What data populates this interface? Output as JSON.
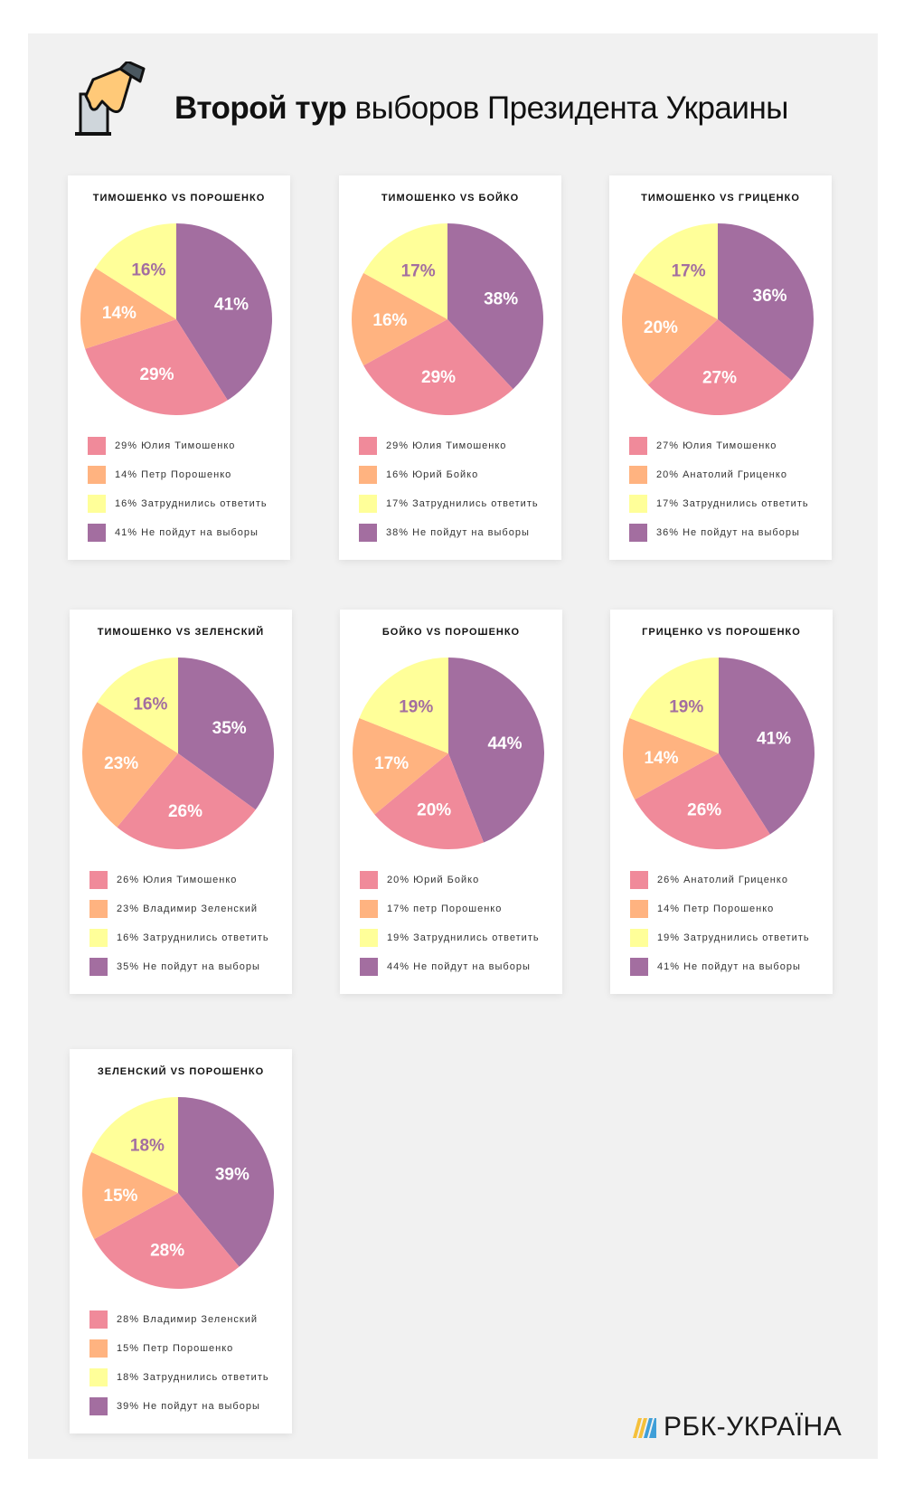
{
  "header": {
    "title_bold": "Второй тур",
    "title_rest": "выборов Президента Украины",
    "icon": "ballot-box-hand-icon"
  },
  "logo": {
    "text": "РБК-УКРАЇНА"
  },
  "colors": {
    "candidate1": "#f08a9a",
    "candidate2": "#ffb380",
    "undecided": "#ffff99",
    "not_voting": "#a36ea0",
    "background": "#f1f1f1"
  },
  "chart_data": [
    {
      "type": "pie",
      "title": "ТИМОШЕНКО VS ПОРОШЕНКО",
      "slices": [
        {
          "label": "29% Юлия Тимошенко",
          "value": 29
        },
        {
          "label": "14% Петр Порошенко",
          "value": 14
        },
        {
          "label": "16% Затруднились ответить",
          "value": 16
        },
        {
          "label": "41% Не пойдут на выборы",
          "value": 41
        }
      ]
    },
    {
      "type": "pie",
      "title": "ТИМОШЕНКО VS БОЙКО",
      "slices": [
        {
          "label": "29% Юлия Тимошенко",
          "value": 29
        },
        {
          "label": "16% Юрий Бойко",
          "value": 16
        },
        {
          "label": "17% Затруднились ответить",
          "value": 17
        },
        {
          "label": "38% Не пойдут на выборы",
          "value": 38
        }
      ]
    },
    {
      "type": "pie",
      "title": "ТИМОШЕНКО VS ГРИЦЕНКО",
      "slices": [
        {
          "label": "27% Юлия Тимошенко",
          "value": 27
        },
        {
          "label": "20% Анатолий Гриценко",
          "value": 20
        },
        {
          "label": "17% Затруднились ответить",
          "value": 17
        },
        {
          "label": "36% Не пойдут на выборы",
          "value": 36
        }
      ]
    },
    {
      "type": "pie",
      "title": "ТИМОШЕНКО VS ЗЕЛЕНСКИЙ",
      "slices": [
        {
          "label": "26% Юлия Тимошенко",
          "value": 26
        },
        {
          "label": "23% Владимир Зеленский",
          "value": 23
        },
        {
          "label": "16% Затруднились ответить",
          "value": 16
        },
        {
          "label": "35% Не пойдут на выборы",
          "value": 35
        }
      ]
    },
    {
      "type": "pie",
      "title": "БОЙКО VS ПОРОШЕНКО",
      "slices": [
        {
          "label": "20% Юрий Бойко",
          "value": 20
        },
        {
          "label": "17% петр Порошенко",
          "value": 17
        },
        {
          "label": "19% Затруднились ответить",
          "value": 19
        },
        {
          "label": "44% Не пойдут на выборы",
          "value": 44
        }
      ]
    },
    {
      "type": "pie",
      "title": "ГРИЦЕНКО VS ПОРОШЕНКО",
      "slices": [
        {
          "label": "26% Анатолий Гриценко",
          "value": 26
        },
        {
          "label": "14% Петр Порошенко",
          "value": 14
        },
        {
          "label": "19% Затруднились ответить",
          "value": 19
        },
        {
          "label": "41% Не пойдут на выборы",
          "value": 41
        }
      ]
    },
    {
      "type": "pie",
      "title": "ЗЕЛЕНСКИЙ VS ПОРОШЕНКО",
      "slices": [
        {
          "label": "28% Владимир Зеленский",
          "value": 28
        },
        {
          "label": "15% Петр Порошенко",
          "value": 15
        },
        {
          "label": "18% Затруднились ответить",
          "value": 18
        },
        {
          "label": "39% Не пойдут на выборы",
          "value": 39
        }
      ]
    }
  ]
}
